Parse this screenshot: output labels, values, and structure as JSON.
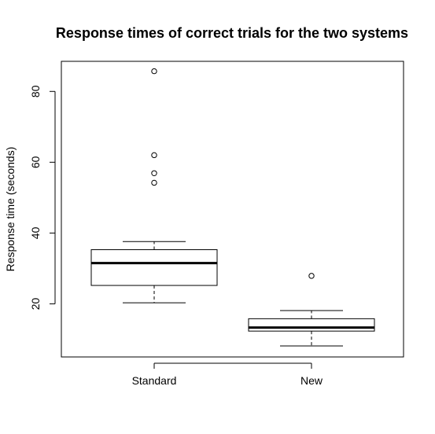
{
  "chart_data": {
    "type": "boxplot",
    "title": "Response times of correct trials for the two systems",
    "xlabel": "",
    "ylabel": "Response time (seconds)",
    "categories": [
      "Standard",
      "New"
    ],
    "ylim": [
      5,
      88.5
    ],
    "yticks": [
      20,
      40,
      60,
      80
    ],
    "ytick_labels": [
      "20",
      "40",
      "60",
      "80"
    ],
    "grid": false,
    "legend": "none",
    "boxes": [
      {
        "category": "Standard",
        "whisker_low": 20.3,
        "q1": 25.2,
        "median": 31.5,
        "q3": 35.3,
        "whisker_high": 37.6,
        "outliers": [
          54.2,
          56.9,
          62.0,
          85.7
        ]
      },
      {
        "category": "New",
        "whisker_low": 8.1,
        "q1": 12.3,
        "median": 13.3,
        "q3": 15.8,
        "whisker_high": 18.1,
        "outliers": [
          27.9
        ]
      }
    ]
  }
}
